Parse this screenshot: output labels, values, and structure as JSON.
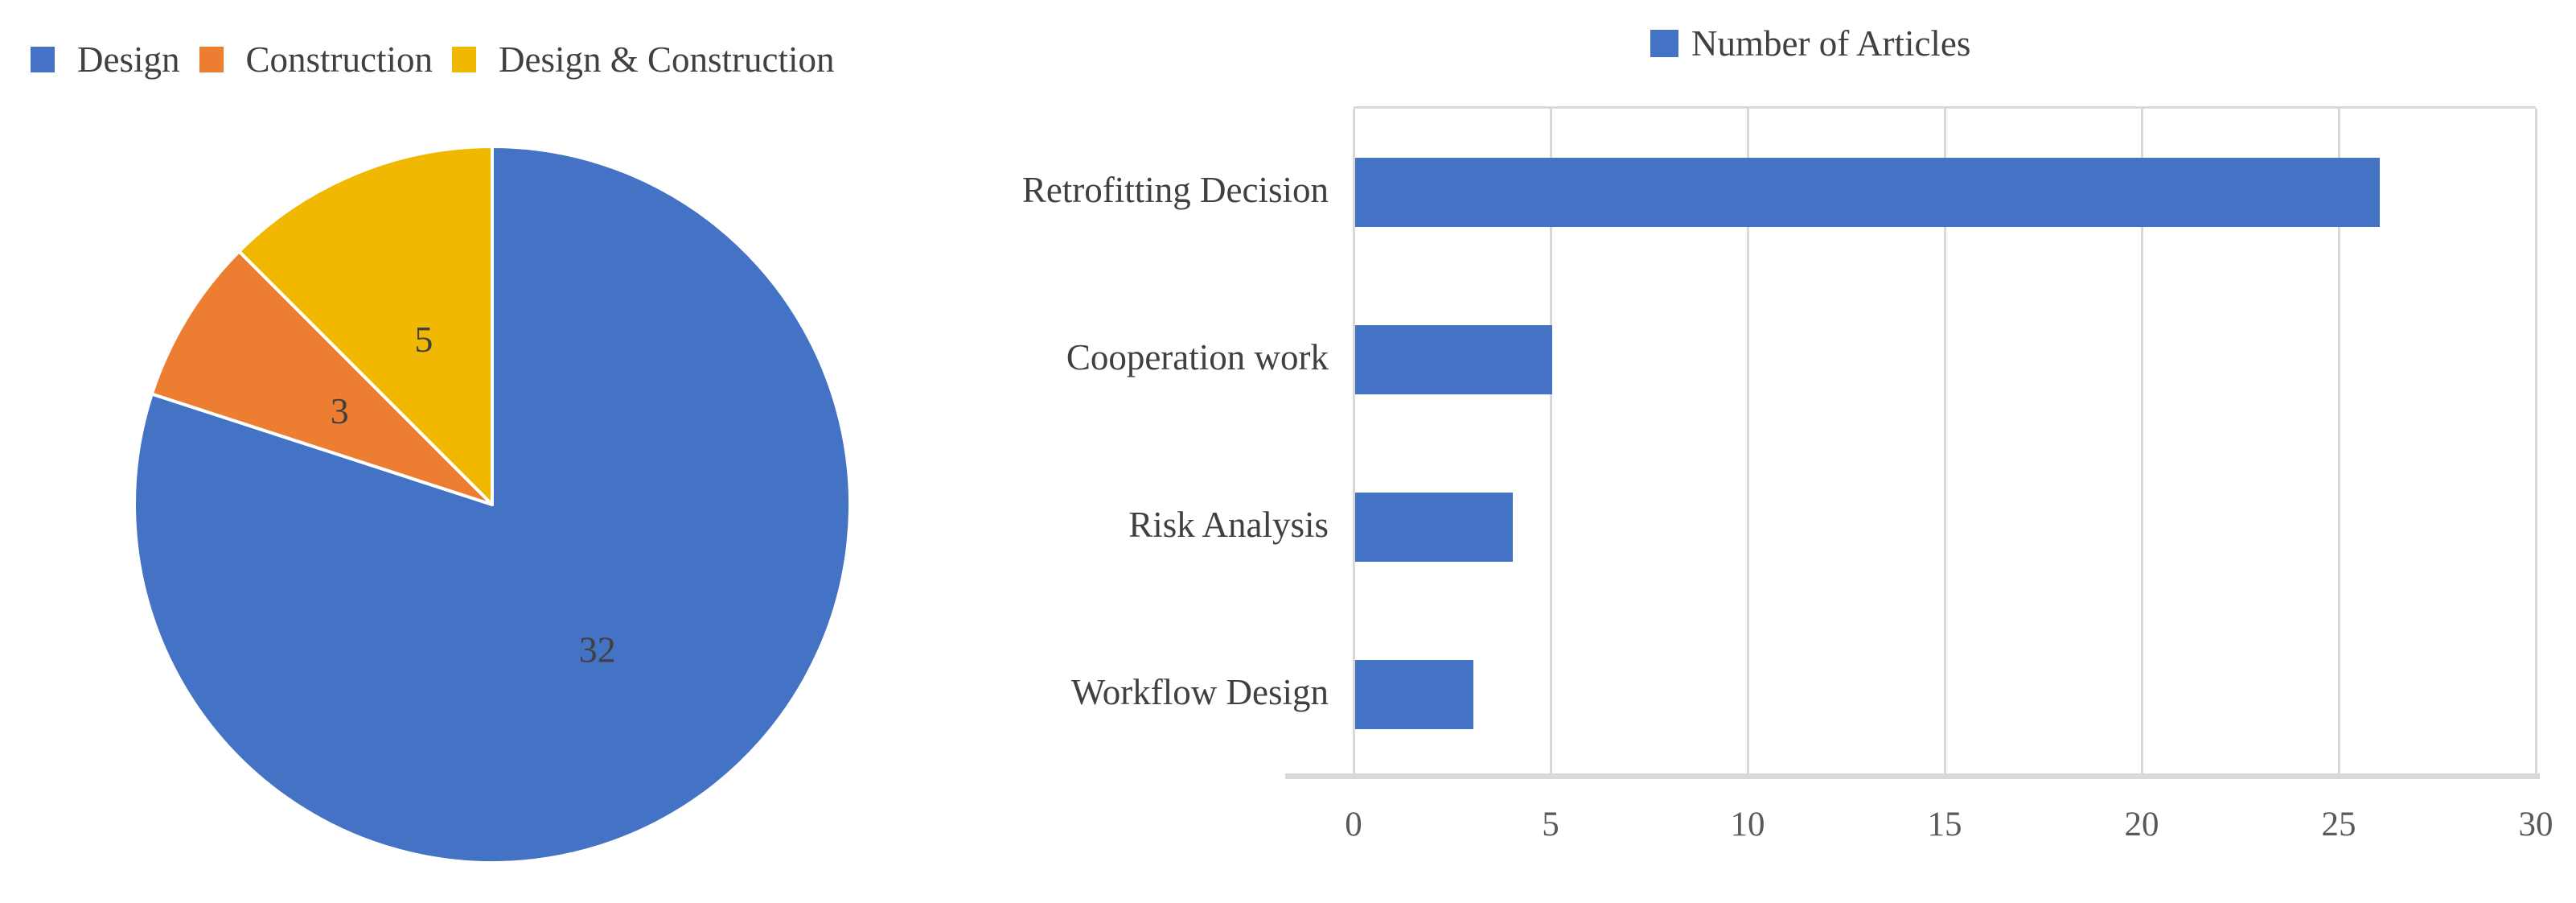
{
  "chart_data": [
    {
      "type": "pie",
      "title": "",
      "legend_position": "top-left",
      "labels": [
        "Design",
        "Construction",
        "Design & Construction"
      ],
      "values": [
        32,
        3,
        5
      ],
      "total": 40,
      "colors": [
        "#4472C4",
        "#ED7D31",
        "#F0B800"
      ],
      "data_labels": [
        "32",
        "3",
        "5"
      ],
      "start_angle_deg": 0,
      "direction": "clockwise",
      "slice_border_color": "#FFFFFF"
    },
    {
      "type": "bar",
      "orientation": "horizontal",
      "legend_label": "Number of Articles",
      "legend_position": "top-center",
      "series_color": "#4472C4",
      "categories": [
        "Retrofitting Decision",
        "Cooperation work",
        "Risk Analysis",
        "Workflow Design"
      ],
      "values": [
        26,
        5,
        4,
        3
      ],
      "xlabel": "",
      "ylabel": "",
      "xlim": [
        0,
        30
      ],
      "xticks": [
        0,
        5,
        10,
        15,
        20,
        25,
        30
      ],
      "grid": true,
      "gridline_color": "#D9D9D9",
      "axis_text_color": "#595959",
      "label_text_color": "#404040"
    }
  ]
}
